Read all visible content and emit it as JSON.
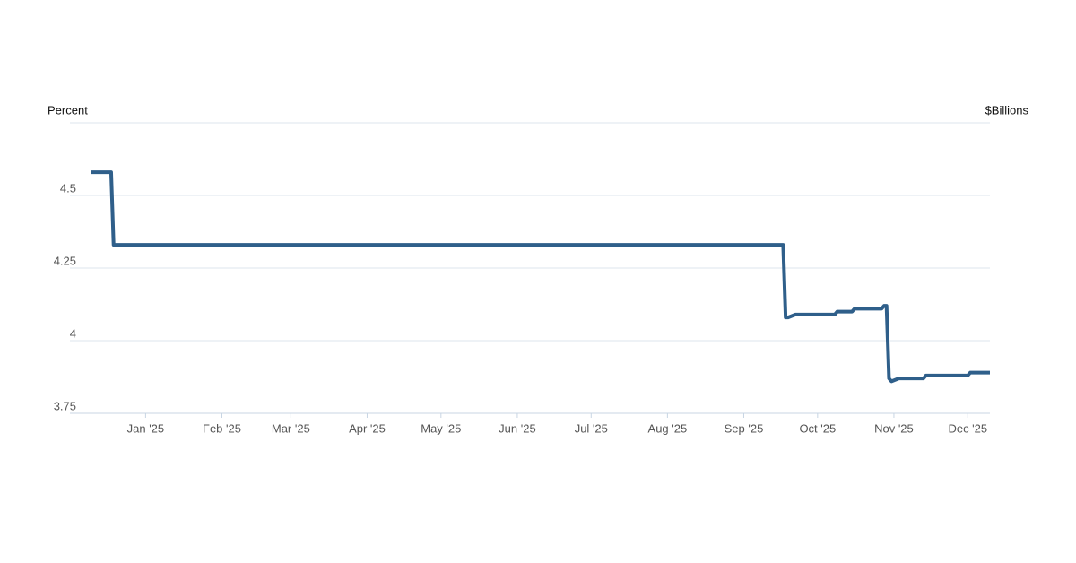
{
  "chart_data": {
    "type": "line",
    "y_label": "Percent",
    "y2_label": "$Billions",
    "x": [
      "2024-12-10",
      "2024-12-18",
      "2024-12-19",
      "2025-09-17",
      "2025-09-18",
      "2025-09-19",
      "2025-09-22",
      "2025-10-08",
      "2025-10-09",
      "2025-10-15",
      "2025-10-16",
      "2025-10-27",
      "2025-10-28",
      "2025-10-29",
      "2025-10-30",
      "2025-10-31",
      "2025-11-03",
      "2025-11-13",
      "2025-11-14",
      "2025-12-01",
      "2025-12-02",
      "2025-12-10"
    ],
    "series": [
      {
        "color": "#2f5f8a",
        "values": [
          4.58,
          4.58,
          4.33,
          4.33,
          4.08,
          4.08,
          4.09,
          4.09,
          4.1,
          4.1,
          4.11,
          4.11,
          4.12,
          4.12,
          3.87,
          3.86,
          3.87,
          3.87,
          3.88,
          3.88,
          3.89,
          3.89
        ]
      }
    ],
    "xlim": [
      "2024-12-10",
      "2025-12-10"
    ],
    "xticks": [
      {
        "value": "2025-01-01",
        "label": "Jan '25"
      },
      {
        "value": "2025-02-01",
        "label": "Feb '25"
      },
      {
        "value": "2025-03-01",
        "label": "Mar '25"
      },
      {
        "value": "2025-04-01",
        "label": "Apr '25"
      },
      {
        "value": "2025-05-01",
        "label": "May '25"
      },
      {
        "value": "2025-06-01",
        "label": "Jun '25"
      },
      {
        "value": "2025-07-01",
        "label": "Jul '25"
      },
      {
        "value": "2025-08-01",
        "label": "Aug '25"
      },
      {
        "value": "2025-09-01",
        "label": "Sep '25"
      },
      {
        "value": "2025-10-01",
        "label": "Oct '25"
      },
      {
        "value": "2025-11-01",
        "label": "Nov '25"
      },
      {
        "value": "2025-12-01",
        "label": "Dec '25"
      }
    ],
    "ylim": [
      3.75,
      4.75
    ],
    "yticks": [
      3.75,
      4,
      4.25,
      4.5
    ],
    "grid": true
  }
}
